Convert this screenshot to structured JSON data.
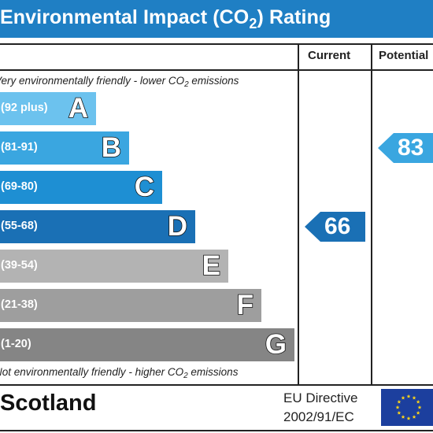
{
  "header": {
    "title_part1": "Environmental Impact (CO",
    "title_sub": "2",
    "title_part2": ") Rating"
  },
  "columns": {
    "current": "Current",
    "potential": "Potential"
  },
  "notes": {
    "top_part1": "Very environmentally friendly - lower CO",
    "top_sub": "2",
    "top_part2": " emissions",
    "bottom_part1": "Not environmentally friendly - higher CO",
    "bottom_sub": "2",
    "bottom_part2": " emissions"
  },
  "footer": {
    "region": "Scotland",
    "directive_line1": "EU Directive",
    "directive_line2": "2002/91/EC"
  },
  "chart_data": {
    "type": "bar",
    "title": "Environmental Impact (CO2) Rating",
    "categories": [
      "A",
      "B",
      "C",
      "D",
      "E",
      "F",
      "G"
    ],
    "bands": [
      {
        "letter": "A",
        "range": "(92 plus)",
        "min": 92,
        "max": 100,
        "color": "#6cc2ee"
      },
      {
        "letter": "B",
        "range": "(81-91)",
        "min": 81,
        "max": 91,
        "color": "#3aa6e0"
      },
      {
        "letter": "C",
        "range": "(69-80)",
        "min": 69,
        "max": 80,
        "color": "#1e8fd3"
      },
      {
        "letter": "D",
        "range": "(55-68)",
        "min": 55,
        "max": 68,
        "color": "#1a70b5"
      },
      {
        "letter": "E",
        "range": "(39-54)",
        "min": 39,
        "max": 54,
        "color": "#b3b3b3"
      },
      {
        "letter": "F",
        "range": "(21-38)",
        "min": 21,
        "max": 38,
        "color": "#9e9e9e"
      },
      {
        "letter": "G",
        "range": "(1-20)",
        "min": 1,
        "max": 20,
        "color": "#858585"
      }
    ],
    "current": {
      "value": 66,
      "band": "D",
      "color": "#1a70b5"
    },
    "potential": {
      "value": 83,
      "band": "B",
      "color": "#3aa6e0"
    }
  }
}
